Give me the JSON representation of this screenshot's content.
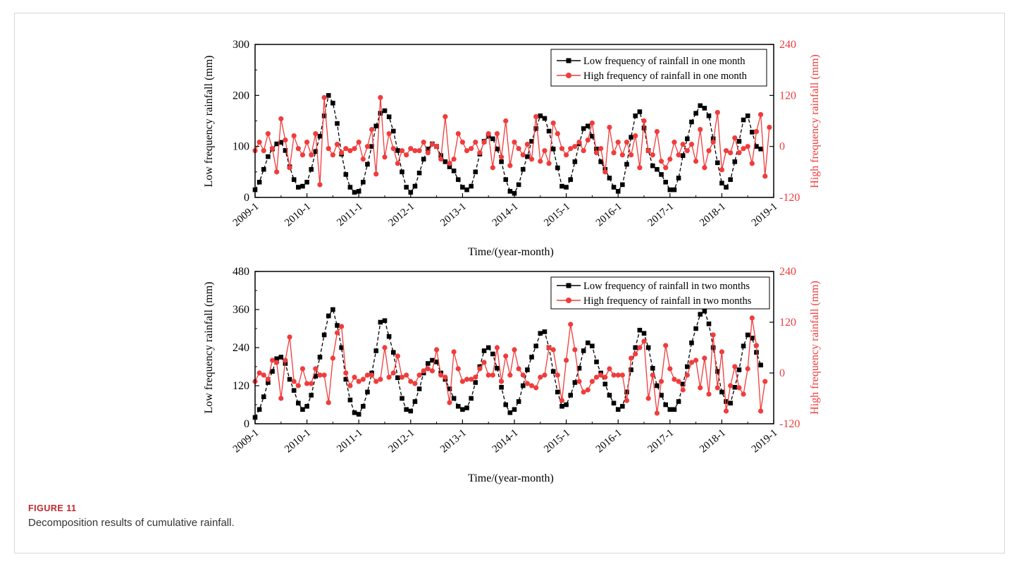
{
  "figure": {
    "label": "FIGURE 11",
    "caption": "Decomposition results of cumulative rainfall."
  },
  "colors": {
    "low": "#000000",
    "high": "#f03c3c",
    "axis": "#000000"
  },
  "chart_data": [
    {
      "type": "line",
      "xlabel": "Time/(year-month)",
      "ylabel": "Low frequency rainfall (mm)",
      "y2label": "High frequency rainfall (mm)",
      "x_tick_labels": [
        "2009-1",
        "2010-1",
        "2011-1",
        "2012-1",
        "2013-1",
        "2014-1",
        "2015-1",
        "2016-1",
        "2017-1",
        "2018-1",
        "2019-1"
      ],
      "x": "monthly, 2009-1 to 2018-12",
      "ylim": [
        0,
        300
      ],
      "y_ticks": [
        "0",
        "100",
        "200",
        "300"
      ],
      "y2lim": [
        -120,
        240
      ],
      "y2_ticks": [
        "-120",
        "0",
        "120",
        "240"
      ],
      "legend_position": "top-right",
      "series": [
        {
          "name": "Low frequency of rainfall in one month",
          "axis": "left",
          "marker": "square",
          "values": [
            15,
            30,
            55,
            80,
            95,
            105,
            108,
            92,
            60,
            35,
            20,
            22,
            30,
            55,
            90,
            120,
            160,
            200,
            185,
            145,
            85,
            45,
            20,
            10,
            12,
            30,
            65,
            100,
            140,
            165,
            170,
            158,
            130,
            92,
            50,
            20,
            10,
            22,
            48,
            75,
            95,
            105,
            100,
            82,
            70,
            60,
            52,
            35,
            20,
            15,
            22,
            50,
            85,
            110,
            120,
            115,
            95,
            70,
            35,
            12,
            8,
            25,
            55,
            80,
            110,
            135,
            160,
            155,
            130,
            95,
            58,
            22,
            20,
            35,
            70,
            105,
            135,
            140,
            120,
            95,
            70,
            55,
            38,
            20,
            12,
            25,
            65,
            118,
            160,
            168,
            136,
            92,
            62,
            55,
            45,
            30,
            15,
            15,
            38,
            82,
            115,
            148,
            165,
            180,
            175,
            160,
            115,
            68,
            28,
            20,
            35,
            70,
            110,
            152,
            160,
            128,
            100,
            95
          ]
        },
        {
          "name": "High frequency of rainfall in one month",
          "axis": "right",
          "marker": "circle",
          "values": [
            -10,
            10,
            -10,
            30,
            -5,
            -60,
            65,
            15,
            -50,
            25,
            -5,
            -20,
            10,
            -20,
            30,
            -90,
            115,
            -5,
            -20,
            5,
            -15,
            -5,
            -10,
            -5,
            10,
            -30,
            0,
            40,
            -65,
            115,
            -25,
            30,
            -5,
            -40,
            -10,
            -20,
            -5,
            -10,
            -10,
            10,
            -15,
            5,
            0,
            -30,
            70,
            -40,
            -30,
            30,
            10,
            -10,
            -5,
            10,
            -15,
            10,
            30,
            -50,
            30,
            -25,
            60,
            -45,
            10,
            -5,
            -20,
            5,
            -30,
            70,
            -35,
            -10,
            -40,
            55,
            30,
            -5,
            -20,
            -5,
            0,
            10,
            -10,
            15,
            55,
            -15,
            -5,
            -60,
            45,
            -15,
            10,
            -20,
            10,
            -20,
            25,
            -50,
            60,
            -10,
            -20,
            35,
            -35,
            -50,
            -30,
            10,
            -20,
            5,
            -10,
            5,
            -35,
            40,
            -50,
            -10,
            10,
            80,
            -55,
            -10,
            -15,
            20,
            -15,
            -5,
            0,
            -40,
            35,
            75,
            -70,
            45
          ]
        }
      ]
    },
    {
      "type": "line",
      "xlabel": "Time/(year-month)",
      "ylabel": "Low frequency rainfall (mm)",
      "y2label": "High frequency rainfall (mm)",
      "x_tick_labels": [
        "2009-1",
        "2010-1",
        "2011-1",
        "2012-1",
        "2013-1",
        "2014-1",
        "2015-1",
        "2016-1",
        "2017-1",
        "2018-1",
        "2019-1"
      ],
      "x": "monthly, 2009-1 to 2018-12",
      "ylim": [
        0,
        480
      ],
      "y_ticks": [
        "0",
        "120",
        "240",
        "360",
        "480"
      ],
      "y2lim": [
        -120,
        240
      ],
      "y2_ticks": [
        "-120",
        "0",
        "120",
        "240"
      ],
      "legend_position": "top-right",
      "series": [
        {
          "name": "Low frequency of rainfall in two months",
          "axis": "left",
          "marker": "square",
          "values": [
            20,
            45,
            85,
            130,
            165,
            205,
            210,
            190,
            140,
            105,
            65,
            45,
            55,
            90,
            150,
            210,
            280,
            340,
            360,
            310,
            240,
            140,
            75,
            35,
            30,
            55,
            100,
            160,
            230,
            320,
            325,
            275,
            225,
            145,
            80,
            45,
            40,
            70,
            110,
            160,
            190,
            200,
            195,
            160,
            140,
            110,
            80,
            55,
            45,
            50,
            80,
            130,
            180,
            230,
            240,
            220,
            175,
            115,
            60,
            35,
            45,
            70,
            120,
            170,
            210,
            245,
            285,
            290,
            240,
            165,
            100,
            55,
            60,
            90,
            130,
            175,
            230,
            255,
            245,
            195,
            160,
            125,
            90,
            65,
            45,
            55,
            100,
            170,
            240,
            295,
            285,
            240,
            175,
            120,
            90,
            60,
            45,
            45,
            70,
            125,
            180,
            255,
            300,
            345,
            355,
            315,
            240,
            165,
            100,
            70,
            65,
            115,
            170,
            245,
            280,
            270,
            225,
            185
          ]
        },
        {
          "name": "High frequency of rainfall in two months",
          "axis": "right",
          "marker": "circle",
          "values": [
            -20,
            0,
            -5,
            -15,
            30,
            25,
            -60,
            30,
            85,
            -20,
            -30,
            10,
            -25,
            -25,
            10,
            -5,
            -5,
            -70,
            35,
            95,
            110,
            0,
            -30,
            -10,
            -20,
            -15,
            -5,
            -5,
            -20,
            -15,
            60,
            -10,
            0,
            40,
            -10,
            -5,
            -20,
            -25,
            -5,
            5,
            10,
            5,
            55,
            -5,
            -10,
            -70,
            50,
            10,
            -20,
            -15,
            -15,
            -10,
            10,
            25,
            -5,
            -5,
            60,
            -20,
            40,
            -5,
            55,
            10,
            -5,
            -25,
            -30,
            -35,
            -10,
            -5,
            60,
            55,
            -5,
            -65,
            30,
            115,
            55,
            -20,
            -45,
            -40,
            -20,
            -10,
            -5,
            -10,
            10,
            -5,
            -5,
            -5,
            -65,
            35,
            45,
            60,
            75,
            -60,
            -5,
            -95,
            -20,
            65,
            10,
            -15,
            -20,
            -40,
            -5,
            25,
            30,
            -35,
            35,
            -50,
            90,
            -35,
            50,
            -90,
            -30,
            15,
            -35,
            -50,
            10,
            130,
            65,
            -90,
            -20
          ]
        }
      ]
    }
  ]
}
